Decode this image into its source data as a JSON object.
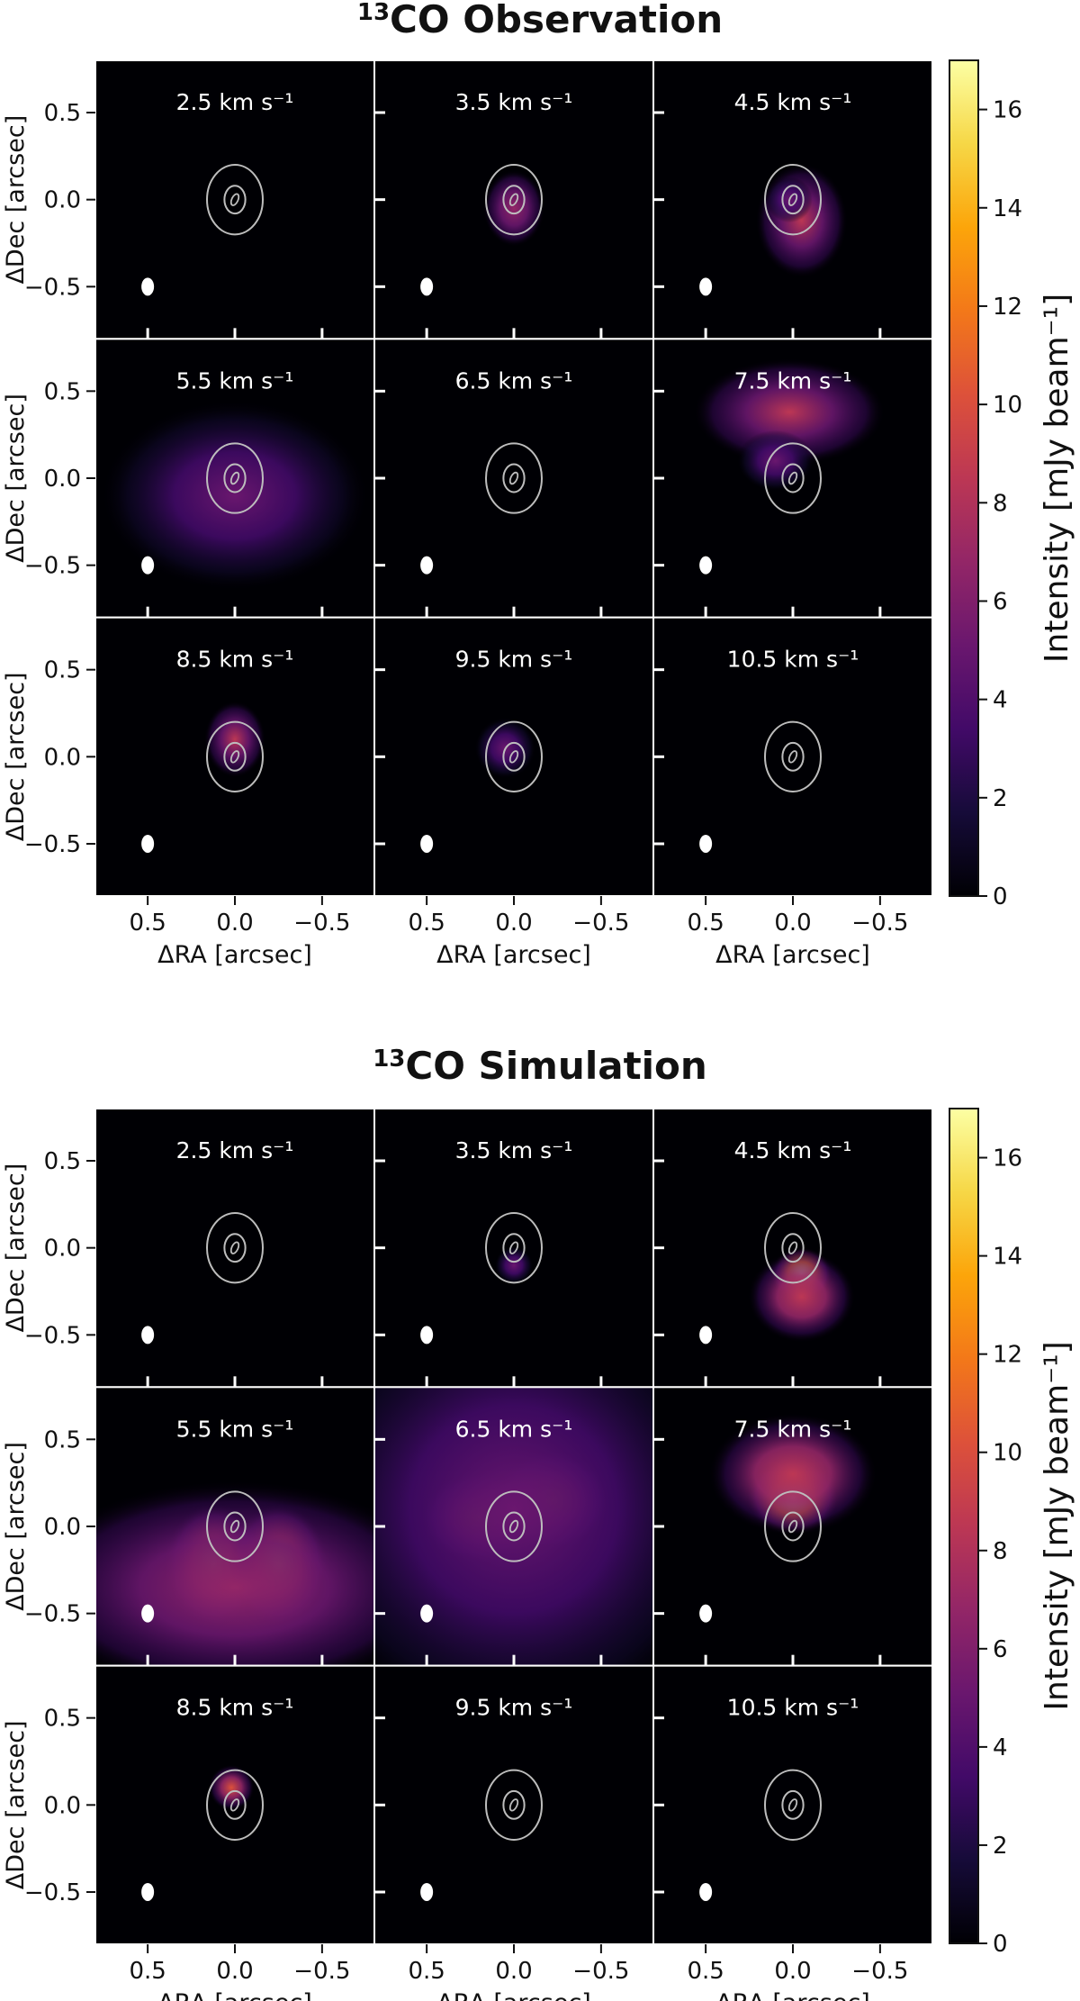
{
  "chart_data": [
    {
      "type": "heatmap",
      "title_sup": "13",
      "title_main": "CO Observation",
      "panel_labels": [
        "2.5 km s⁻¹",
        "3.5 km s⁻¹",
        "4.5 km s⁻¹",
        "5.5 km s⁻¹",
        "6.5 km s⁻¹",
        "7.5 km s⁻¹",
        "8.5 km s⁻¹",
        "9.5 km s⁻¹",
        "10.5 km s⁻¹"
      ],
      "velocities_km_s": [
        2.5,
        3.5,
        4.5,
        5.5,
        6.5,
        7.5,
        8.5,
        9.5,
        10.5
      ],
      "xlabel": "ΔRA  [arcsec]",
      "ylabel": "ΔDec  [arcsec]",
      "x_ticks": [
        "0.5",
        "0.0",
        "−0.5"
      ],
      "y_ticks": [
        "0.5",
        "0.0",
        "−0.5"
      ],
      "xlim": [
        0.8,
        -0.8
      ],
      "ylim": [
        -0.8,
        0.8
      ],
      "colorbar_label": "Intensity [mJy beam⁻¹]",
      "colorbar_ticks": [
        "0",
        "2",
        "4",
        "6",
        "8",
        "10",
        "12",
        "14",
        "16"
      ],
      "colorbar_range": [
        0,
        17
      ],
      "colormap": "inferno",
      "blobs": [
        [],
        [
          {
            "x": 0.0,
            "y": -0.05,
            "sx": 0.08,
            "sy": 0.1,
            "a": 6
          }
        ],
        [
          {
            "x": -0.05,
            "y": -0.12,
            "sx": 0.12,
            "sy": 0.15,
            "a": 7
          },
          {
            "x": 0.02,
            "y": 0.0,
            "sx": 0.06,
            "sy": 0.06,
            "a": 5
          }
        ],
        [
          {
            "x": 0.0,
            "y": -0.1,
            "sx": 0.35,
            "sy": 0.25,
            "a": 4.5
          }
        ],
        [],
        [
          {
            "x": 0.02,
            "y": 0.38,
            "sx": 0.25,
            "sy": 0.14,
            "a": 7
          },
          {
            "x": 0.1,
            "y": 0.1,
            "sx": 0.1,
            "sy": 0.08,
            "a": 5
          }
        ],
        [
          {
            "x": 0.0,
            "y": 0.1,
            "sx": 0.08,
            "sy": 0.1,
            "a": 7
          }
        ],
        [
          {
            "x": 0.05,
            "y": 0.05,
            "sx": 0.08,
            "sy": 0.08,
            "a": 5
          }
        ],
        []
      ]
    },
    {
      "type": "heatmap",
      "title_sup": "13",
      "title_main": "CO Simulation",
      "panel_labels": [
        "2.5 km s⁻¹",
        "3.5 km s⁻¹",
        "4.5 km s⁻¹",
        "5.5 km s⁻¹",
        "6.5 km s⁻¹",
        "7.5 km s⁻¹",
        "8.5 km s⁻¹",
        "9.5 km s⁻¹",
        "10.5 km s⁻¹"
      ],
      "velocities_km_s": [
        2.5,
        3.5,
        4.5,
        5.5,
        6.5,
        7.5,
        8.5,
        9.5,
        10.5
      ],
      "xlabel": "ΔRA  [arcsec]",
      "ylabel": "ΔDec  [arcsec]",
      "x_ticks": [
        "0.5",
        "0.0",
        "−0.5"
      ],
      "y_ticks": [
        "0.5",
        "0.0",
        "−0.5"
      ],
      "xlim": [
        0.8,
        -0.8
      ],
      "ylim": [
        -0.8,
        0.8
      ],
      "colorbar_label": "Intensity [mJy beam⁻¹]",
      "colorbar_ticks": [
        "0",
        "2",
        "4",
        "6",
        "8",
        "10",
        "12",
        "14",
        "16"
      ],
      "colorbar_range": [
        0,
        17
      ],
      "colormap": "inferno",
      "blobs": [
        [],
        [
          {
            "x": 0.0,
            "y": -0.1,
            "sx": 0.05,
            "sy": 0.05,
            "a": 5
          }
        ],
        [
          {
            "x": -0.05,
            "y": -0.15,
            "sx": 0.08,
            "sy": 0.07,
            "a": 16
          },
          {
            "x": -0.05,
            "y": -0.28,
            "sx": 0.14,
            "sy": 0.12,
            "a": 8
          }
        ],
        [
          {
            "x": 0.12,
            "y": -0.22,
            "sx": 0.13,
            "sy": 0.16,
            "a": 14
          },
          {
            "x": -0.25,
            "y": -0.22,
            "sx": 0.13,
            "sy": 0.16,
            "a": 14
          },
          {
            "x": 0.0,
            "y": -0.35,
            "sx": 0.55,
            "sy": 0.28,
            "a": 6
          }
        ],
        [
          {
            "x": 0.2,
            "y": 0.05,
            "sx": 0.15,
            "sy": 0.12,
            "a": 13
          },
          {
            "x": -0.22,
            "y": 0.15,
            "sx": 0.15,
            "sy": 0.13,
            "a": 13
          },
          {
            "x": 0.0,
            "y": 0.1,
            "sx": 0.6,
            "sy": 0.6,
            "a": 4
          }
        ],
        [
          {
            "x": 0.0,
            "y": 0.17,
            "sx": 0.12,
            "sy": 0.1,
            "a": 16
          },
          {
            "x": 0.0,
            "y": 0.3,
            "sx": 0.22,
            "sy": 0.16,
            "a": 8
          }
        ],
        [
          {
            "x": 0.02,
            "y": 0.1,
            "sx": 0.06,
            "sy": 0.06,
            "a": 10
          }
        ],
        [],
        []
      ]
    }
  ]
}
